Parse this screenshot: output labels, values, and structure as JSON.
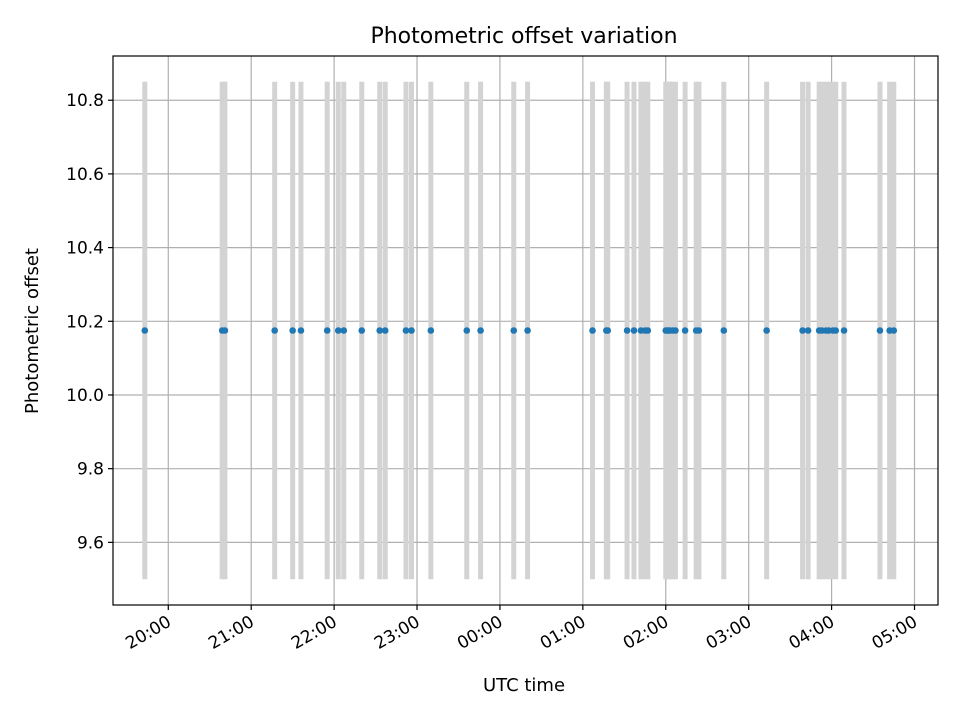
{
  "chart_data": {
    "type": "scatter",
    "title": "Photometric offset variation",
    "xlabel": "UTC time",
    "ylabel": "Photometric offset",
    "x_ticks": [
      "20:00",
      "21:00",
      "22:00",
      "23:00",
      "00:00",
      "01:00",
      "02:00",
      "03:00",
      "04:00",
      "05:00"
    ],
    "y_ticks": [
      "9.6",
      "9.8",
      "10.0",
      "10.2",
      "10.4",
      "10.6",
      "10.8"
    ],
    "ylim": [
      9.43,
      10.92
    ],
    "grid": true,
    "series": [
      {
        "color": "#1f77b4",
        "errorbar_color": "#d3d3d3",
        "y": 10.175,
        "y_error_low": 9.5,
        "y_error_high": 10.85,
        "x_times": [
          "19:43",
          "20:39",
          "20:41",
          "21:17",
          "21:30",
          "21:36",
          "21:55",
          "22:03",
          "22:07",
          "22:20",
          "22:33",
          "22:37",
          "22:52",
          "22:56",
          "23:10",
          "23:36",
          "23:46",
          "00:10",
          "00:20",
          "01:07",
          "01:17",
          "01:18",
          "01:32",
          "01:37",
          "01:42",
          "01:45",
          "01:47",
          "02:00",
          "02:01",
          "02:02",
          "02:03",
          "02:05",
          "02:07",
          "02:14",
          "02:22",
          "02:24",
          "02:42",
          "03:13",
          "03:39",
          "03:43",
          "03:51",
          "03:53",
          "03:56",
          "03:58",
          "04:01",
          "04:03",
          "04:09",
          "04:35",
          "04:42",
          "04:45"
        ]
      }
    ]
  }
}
